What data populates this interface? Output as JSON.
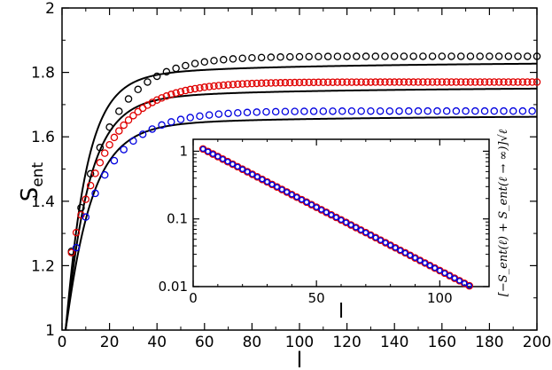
{
  "chart_data": [
    {
      "type": "scatter",
      "xlabel": "l",
      "ylabel": "S",
      "ylabel_subscript": "ent",
      "xlim": [
        0,
        200
      ],
      "ylim": [
        1,
        2
      ],
      "x_ticks": [
        "0",
        "20",
        "40",
        "60",
        "80",
        "100",
        "120",
        "140",
        "160",
        "180",
        "200"
      ],
      "y_ticks": [
        "1",
        "1.2",
        "1.4",
        "1.6",
        "1.8",
        "2"
      ],
      "series": [
        {
          "color": "#000000",
          "marker": "circle",
          "asymptote": 1.85,
          "amplitude": 0.78,
          "rate": 0.0633,
          "x_start": 4,
          "x_step": 4
        },
        {
          "color": "#e00000",
          "marker": "circle",
          "asymptote": 1.77,
          "amplitude": 0.68,
          "rate": 0.0625,
          "x_start": 4,
          "x_step": 2
        },
        {
          "color": "#0000e0",
          "marker": "circle",
          "asymptote": 1.68,
          "amplitude": 0.62,
          "rate": 0.0633,
          "x_start": 6,
          "x_step": 4
        }
      ],
      "fit_lines": [
        {
          "color": "#000000",
          "asymptote": 1.85,
          "coef": 0.36,
          "shift": 2.55
        },
        {
          "color": "#000000",
          "asymptote": 1.77,
          "coef": 0.32,
          "shift": 2.48
        },
        {
          "color": "#000000",
          "asymptote": 1.68,
          "coef": 0.28,
          "shift": 2.35
        }
      ]
    },
    {
      "type": "scatter",
      "inset": true,
      "xlabel": "l",
      "ylabel": "[−S_ent(ℓ) + S_ent(ℓ → ∞)]√ℓ",
      "yscale": "log",
      "xlim": [
        0,
        120
      ],
      "ylim": [
        0.01,
        1.5
      ],
      "x_ticks": [
        "0",
        "50",
        "100"
      ],
      "y_ticks": [
        "0.01",
        "0.1",
        "1"
      ],
      "series": [
        {
          "color": "#e00000",
          "marker": "circle",
          "y0": 1.08,
          "decay": 0.0431,
          "x_start": 4,
          "x_step": 2
        },
        {
          "color": "#0000e0",
          "marker": "circle",
          "y0": 1.08,
          "decay": 0.0431,
          "x_start": 4,
          "x_step": 2
        }
      ]
    }
  ]
}
